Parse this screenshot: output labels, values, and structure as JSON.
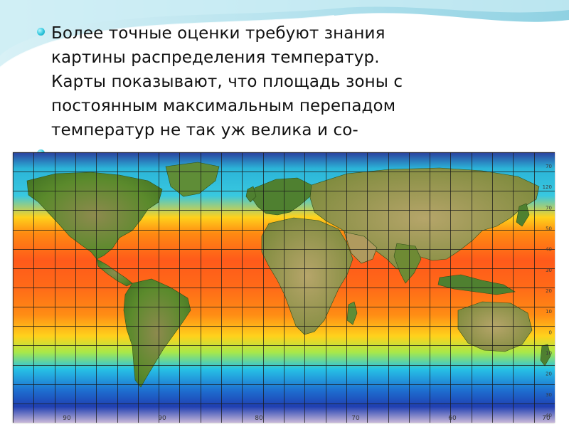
{
  "slide": {
    "bullets": [
      {
        "lines": [
          "Более точные оценки требуют знания",
          "картины распределения температур.",
          "Карты показывают, что площадь зоны с",
          "постоянным максимальным перепадом",
          "температур не так уж велика и со-"
        ]
      }
    ]
  },
  "map": {
    "lon_labels": [
      "90",
      "90",
      "80",
      "70",
      "60",
      "70"
    ],
    "lat_labels": [
      "70",
      "120",
      "70",
      "50",
      "40",
      "30",
      "20",
      "10",
      "0",
      "10",
      "20",
      "30",
      "40"
    ],
    "colors": {
      "polar_blue": "#1f3fb2",
      "cyan": "#27c3e6",
      "yellow": "#ffd21c",
      "orange": "#ff8a12",
      "tropic_red": "#ff5a1a",
      "land_green": "#4a7b28",
      "land_brown": "#9c8a52",
      "grid": "#1a1a1a"
    }
  }
}
